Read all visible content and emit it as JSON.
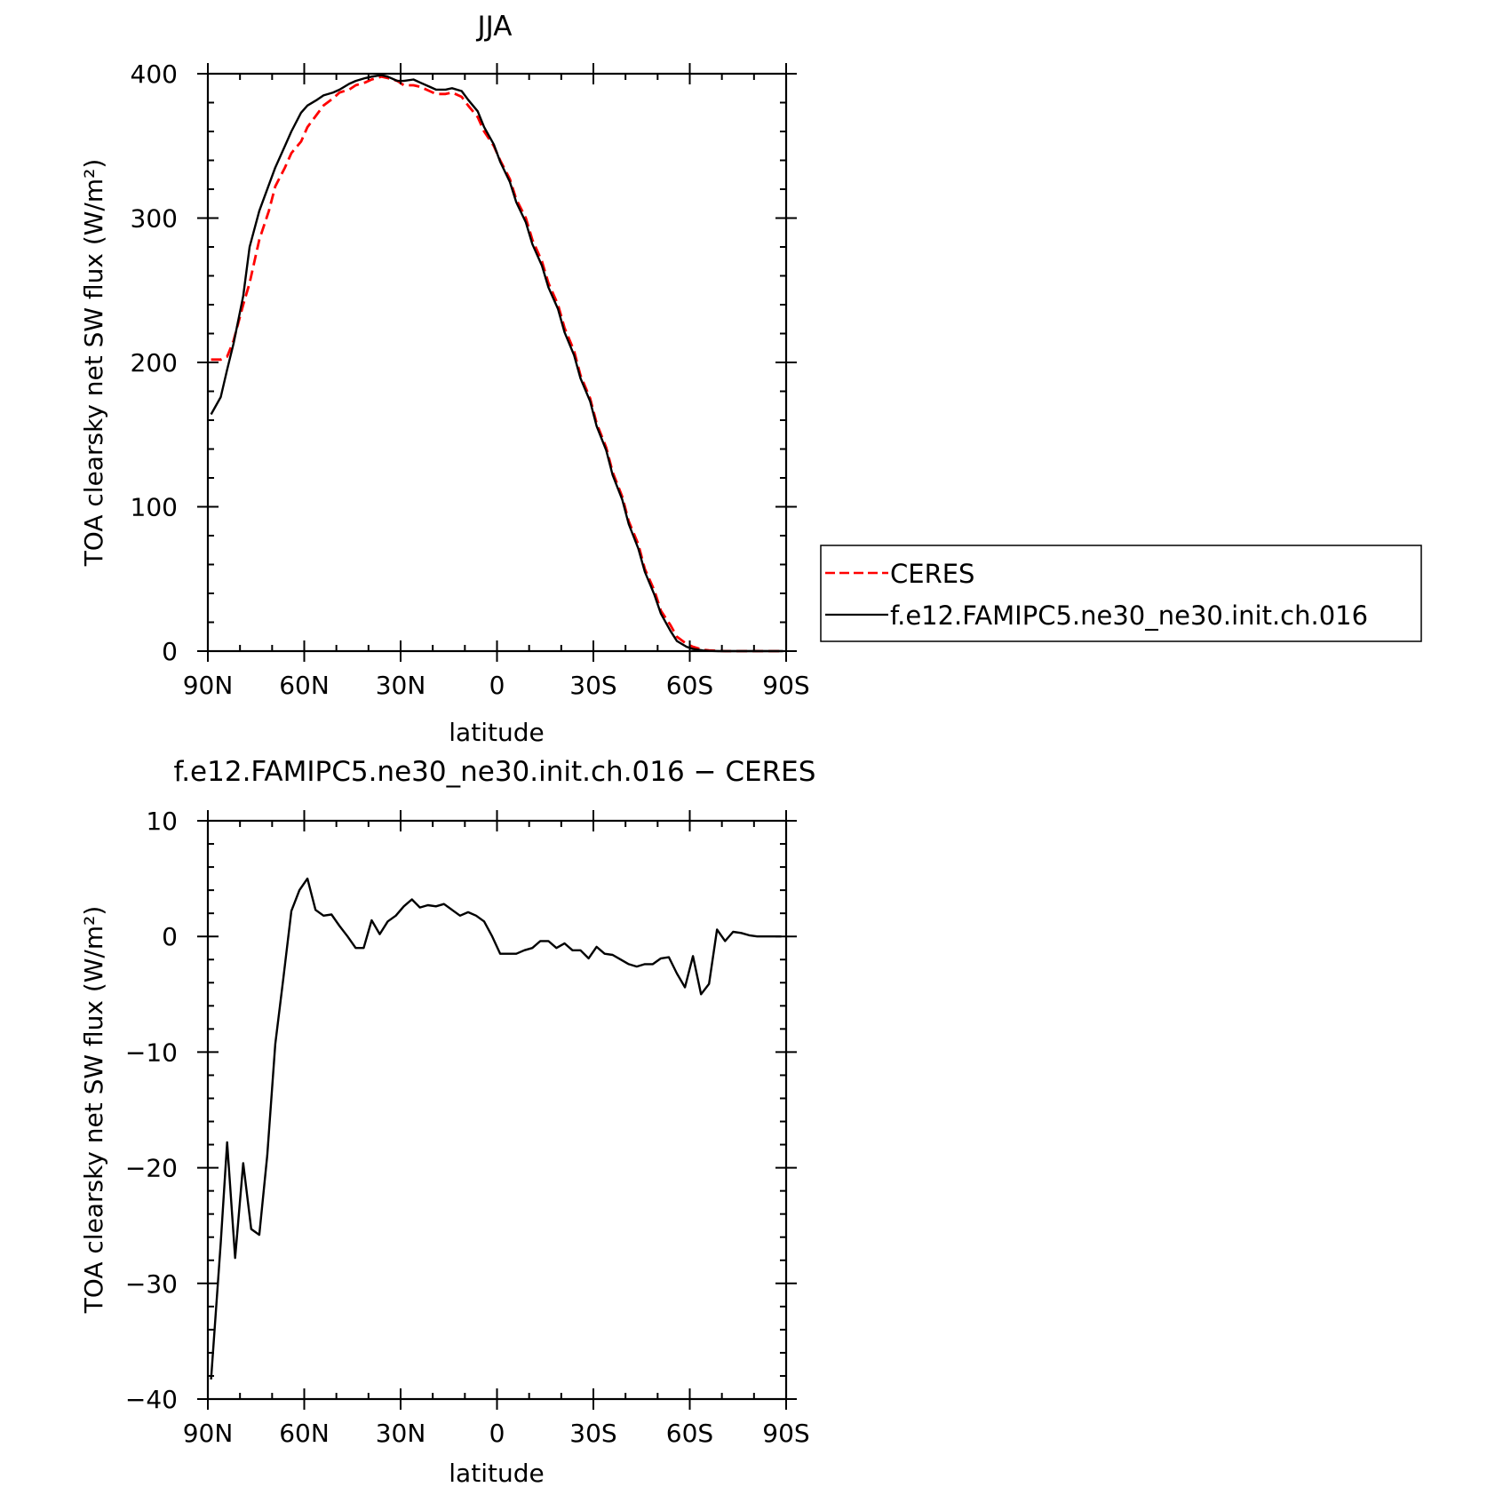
{
  "chart_data": [
    {
      "type": "line",
      "title": "JJA",
      "xlabel": "latitude",
      "ylabel": "TOA clearsky net SW flux (W/m²)",
      "xlim": [
        -90,
        90
      ],
      "ylim": [
        0,
        400
      ],
      "xticks": [
        -90,
        -60,
        -30,
        0,
        30,
        60,
        90
      ],
      "xtick_labels": [
        "90N",
        "60N",
        "30N",
        "0",
        "30S",
        "60S",
        "90S"
      ],
      "yticks": [
        0,
        100,
        200,
        300,
        400
      ],
      "ytick_labels": [
        "0",
        "100",
        "200",
        "300",
        "400"
      ],
      "grid": false,
      "legend": "right, outside",
      "series": [
        {
          "name": "CERES",
          "color": "#ff0000",
          "style": "dashed",
          "x": [
            -89,
            -86,
            -84,
            -82,
            -79,
            -77,
            -74,
            -71,
            -69,
            -66,
            -64,
            -61,
            -59,
            -56,
            -54,
            -51,
            -49,
            -46,
            -44,
            -41,
            -39,
            -36,
            -34,
            -31,
            -29,
            -26,
            -24,
            -21,
            -19,
            -16,
            -14,
            -11,
            -9,
            -6,
            -4,
            -1,
            1,
            4,
            6,
            9,
            11,
            14,
            16,
            19,
            21,
            24,
            26,
            29,
            31,
            34,
            36,
            39,
            41,
            44,
            46,
            49,
            51,
            54,
            56,
            59,
            61,
            64,
            66,
            69,
            71,
            74,
            76,
            79,
            81,
            84,
            86,
            89
          ],
          "y": [
            202,
            202,
            204,
            215,
            240,
            255,
            285,
            305,
            322,
            335,
            345,
            353,
            363,
            372,
            378,
            383,
            387,
            389,
            392,
            394,
            396,
            398,
            397,
            395,
            392,
            392,
            391,
            388,
            386,
            386,
            387,
            384,
            378,
            370,
            360,
            350,
            340,
            327,
            313,
            300,
            285,
            270,
            255,
            240,
            224,
            208,
            191,
            175,
            158,
            141,
            124,
            107,
            90,
            74,
            57,
            42,
            28,
            18,
            10,
            5,
            3,
            1,
            0.5,
            0.2,
            0,
            0,
            0,
            0,
            0,
            0,
            0,
            0
          ]
        },
        {
          "name": "f.e12.FAMIPC5.ne30_ne30.init.ch.016",
          "color": "#000000",
          "style": "solid",
          "x": [
            -89,
            -86,
            -84,
            -82,
            -79,
            -77,
            -74,
            -71,
            -69,
            -66,
            -64,
            -61,
            -59,
            -56,
            -54,
            -51,
            -49,
            -46,
            -44,
            -41,
            -39,
            -36,
            -34,
            -31,
            -29,
            -26,
            -24,
            -21,
            -19,
            -16,
            -14,
            -11,
            -9,
            -6,
            -4,
            -1,
            1,
            4,
            6,
            9,
            11,
            14,
            16,
            19,
            21,
            24,
            26,
            29,
            31,
            34,
            36,
            39,
            41,
            44,
            46,
            49,
            51,
            54,
            56,
            59,
            61,
            64,
            66,
            69,
            71,
            74,
            76,
            79,
            81,
            84,
            86,
            89
          ],
          "y": [
            164,
            176,
            195,
            213,
            246,
            280,
            305,
            323,
            335,
            350,
            360,
            373,
            378,
            382,
            385,
            387,
            389,
            393,
            395,
            397,
            398,
            399,
            398,
            395,
            395,
            396,
            394,
            391,
            389,
            389,
            390,
            388,
            382,
            374,
            363,
            351,
            339,
            325,
            311,
            297,
            282,
            267,
            252,
            237,
            221,
            205,
            189,
            173,
            156,
            139,
            122,
            105,
            88,
            71,
            55,
            39,
            26,
            14,
            7,
            3,
            1.5,
            0.5,
            0.2,
            0,
            0,
            0,
            0,
            0,
            0,
            0,
            0,
            0
          ]
        }
      ]
    },
    {
      "type": "line",
      "title": "f.e12.FAMIPC5.ne30_ne30.init.ch.016 − CERES",
      "xlabel": "latitude",
      "ylabel": "TOA clearsky net SW flux (W/m²)",
      "xlim": [
        -90,
        90
      ],
      "ylim": [
        -40,
        10
      ],
      "xticks": [
        -90,
        -60,
        -30,
        0,
        30,
        60,
        90
      ],
      "xtick_labels": [
        "90N",
        "60N",
        "30N",
        "0",
        "30S",
        "60S",
        "90S"
      ],
      "yticks": [
        -40,
        -30,
        -20,
        -10,
        0,
        10
      ],
      "ytick_labels": [
        "−40",
        "−30",
        "−20",
        "−10",
        "0",
        "10"
      ],
      "grid": false,
      "series": [
        {
          "color": "#000000",
          "style": "solid",
          "x": [
            -89,
            -86,
            -84,
            -81.5,
            -79,
            -76.5,
            -74,
            -71.5,
            -69,
            -66.5,
            -64,
            -61.5,
            -59,
            -56.5,
            -54,
            -51.5,
            -49,
            -46.5,
            -44,
            -41.5,
            -39,
            -36.5,
            -34,
            -31.5,
            -29,
            -26.5,
            -24,
            -21.5,
            -19,
            -16.5,
            -14,
            -11.5,
            -9,
            -6.5,
            -4,
            -1.5,
            1,
            3.5,
            6,
            8.5,
            11,
            13.5,
            16,
            18.5,
            21,
            23.5,
            26,
            28.5,
            31,
            33.5,
            36,
            38.5,
            41,
            43.5,
            46,
            48.5,
            51,
            53.5,
            56,
            58.5,
            61,
            63.5,
            66,
            68.5,
            71,
            73.5,
            76,
            78.5,
            81,
            83.5,
            86,
            88.5
          ],
          "y": [
            -38.3,
            -26.5,
            -17.8,
            -27.8,
            -19.6,
            -25.3,
            -25.8,
            -18.9,
            -9.3,
            -3.6,
            2.2,
            4.0,
            5.0,
            2.3,
            1.8,
            1.9,
            0.9,
            0,
            -1.0,
            -1.0,
            1.4,
            0.2,
            1.3,
            1.8,
            2.6,
            3.2,
            2.5,
            2.7,
            2.6,
            2.8,
            2.3,
            1.8,
            2.1,
            1.8,
            1.3,
            0,
            -1.5,
            -1.5,
            -1.5,
            -1.2,
            -1.0,
            -0.4,
            -0.4,
            -1.0,
            -0.6,
            -1.2,
            -1.2,
            -1.9,
            -0.9,
            -1.5,
            -1.6,
            -2.0,
            -2.4,
            -2.6,
            -2.4,
            -2.4,
            -1.9,
            -1.8,
            -3.2,
            -4.4,
            -1.7,
            -5.0,
            -4.1,
            0.6,
            -0.4,
            0.4,
            0.3,
            0.1,
            0,
            0,
            0,
            0
          ]
        }
      ]
    }
  ]
}
